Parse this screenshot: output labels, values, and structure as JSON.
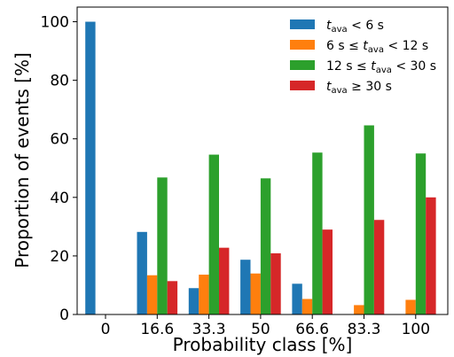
{
  "chart_data": {
    "type": "bar",
    "categories": [
      "0",
      "16.6",
      "33.3",
      "50",
      "66.6",
      "83.3",
      "100"
    ],
    "series": [
      {
        "name": "t_ava < 6 s",
        "color": "#1f77b4",
        "values": [
          100,
          28.2,
          9.0,
          18.7,
          10.5,
          0,
          0
        ]
      },
      {
        "name": "6 s ≤ t_ava < 12 s",
        "color": "#ff7f0e",
        "values": [
          0,
          13.4,
          13.6,
          14.0,
          5.3,
          3.2,
          5.0
        ]
      },
      {
        "name": "12 s ≤ t_ava < 30 s",
        "color": "#2ca02c",
        "values": [
          0,
          46.8,
          54.6,
          46.5,
          55.3,
          64.6,
          55.0
        ]
      },
      {
        "name": "t_ava ≥ 30 s",
        "color": "#d62728",
        "values": [
          0,
          11.4,
          22.8,
          20.9,
          29.0,
          32.3,
          40.0
        ]
      }
    ],
    "xlabel": "Probability class [%]",
    "ylabel": "Proportion of events [%]",
    "ylim": [
      0,
      105
    ],
    "yticks": [
      0,
      20,
      40,
      60,
      80,
      100
    ],
    "grid": false,
    "legend_position": "top-right"
  }
}
